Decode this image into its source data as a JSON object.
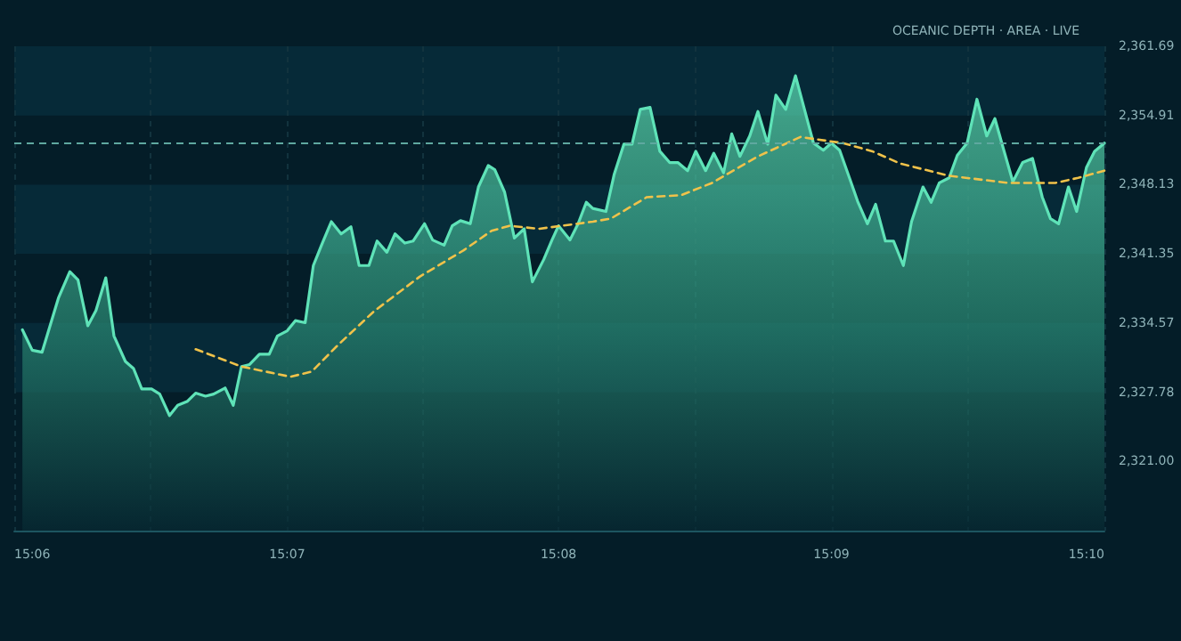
{
  "chart_data": {
    "type": "area",
    "title": "OCEANIC DEPTH · AREA · LIVE",
    "xlim": [
      15.1,
      15.1667
    ],
    "xticks": [
      {
        "value": 15.1,
        "label": "15:06"
      },
      {
        "value": 15.1083,
        "label": null
      },
      {
        "value": 15.1167,
        "label": "15:07"
      },
      {
        "value": 15.125,
        "label": null
      },
      {
        "value": 15.1333,
        "label": "15:08"
      },
      {
        "value": 15.1417,
        "label": null
      },
      {
        "value": 15.15,
        "label": "15:09"
      },
      {
        "value": 15.1583,
        "label": null
      },
      {
        "value": 15.1667,
        "label": "15:10"
      }
    ],
    "ylim": [
      2314.22,
      2361.69
    ],
    "yticks": [
      {
        "value": 2321.0,
        "label": "2,321.00"
      },
      {
        "value": 2327.78,
        "label": "2,327.78"
      },
      {
        "value": 2334.57,
        "label": "2,334.57"
      },
      {
        "value": 2341.35,
        "label": "2,341.35"
      },
      {
        "value": 2348.13,
        "label": "2,348.13"
      },
      {
        "value": 2354.91,
        "label": "2,354.91"
      },
      {
        "value": 2361.69,
        "label": "2,361.69"
      }
    ],
    "grid": "x",
    "bands": [
      {
        "axis": "y",
        "from": 2354.91,
        "to": 2361.69,
        "color": "#062a38"
      },
      {
        "axis": "y",
        "from": 2341.35,
        "to": 2348.13,
        "color": "#062a38"
      },
      {
        "axis": "y",
        "from": 2327.78,
        "to": 2334.57,
        "color": "#062a38"
      }
    ],
    "series": [
      {
        "color": "#5fe3b8",
        "x": [
          15.1005,
          15.1011,
          15.1017,
          15.1027,
          15.1034,
          15.1039,
          15.1045,
          15.105,
          15.1056,
          15.1061,
          15.1068,
          15.1073,
          15.1078,
          15.1084,
          15.1089,
          15.1095,
          15.11,
          15.1106,
          15.1111,
          15.1117,
          15.1122,
          15.1129,
          15.1134,
          15.1139,
          15.1144,
          15.115,
          15.1156,
          15.1161,
          15.1167,
          15.1172,
          15.1178,
          15.1183,
          15.1188,
          15.1194,
          15.12,
          15.1206,
          15.1211,
          15.1217,
          15.1222,
          15.1228,
          15.1233,
          15.1239,
          15.1244,
          15.1251,
          15.1256,
          15.1263,
          15.1268,
          15.1273,
          15.1279,
          15.1284,
          15.129,
          15.1294,
          15.13,
          15.1306,
          15.1312,
          15.1317,
          15.1324,
          15.1329,
          15.1333,
          15.134,
          15.1345,
          15.135,
          15.1354,
          15.1362,
          15.1367,
          15.1373,
          15.1378,
          15.1383,
          15.1389,
          15.1395,
          15.1401,
          15.1406,
          15.1412,
          15.1417,
          15.1423,
          15.1428,
          15.1434,
          15.1439,
          15.1444,
          15.145,
          15.1455,
          15.1461,
          15.1466,
          15.1472,
          15.1478,
          15.1484,
          15.1489,
          15.1495,
          15.15,
          15.1505,
          15.1511,
          15.1516,
          15.1522,
          15.1527,
          15.1533,
          15.1538,
          15.1544,
          15.1549,
          15.1556,
          15.1561,
          15.1566,
          15.1572,
          15.1577,
          15.1583,
          15.1589,
          15.1595,
          15.16,
          15.1606,
          15.1611,
          15.1617,
          15.1623,
          15.1629,
          15.1634,
          15.1639,
          15.1645,
          15.165,
          15.1656,
          15.1661,
          15.1667
        ],
        "values": [
          2333.9,
          2331.9,
          2331.7,
          2337.0,
          2339.6,
          2338.8,
          2334.3,
          2335.8,
          2339.0,
          2333.3,
          2330.8,
          2330.1,
          2328.1,
          2328.1,
          2327.6,
          2325.5,
          2326.5,
          2326.9,
          2327.7,
          2327.4,
          2327.6,
          2328.2,
          2326.5,
          2330.3,
          2330.5,
          2331.5,
          2331.5,
          2333.3,
          2333.8,
          2334.8,
          2334.6,
          2340.2,
          2342.2,
          2344.5,
          2343.3,
          2344.0,
          2340.2,
          2340.2,
          2342.6,
          2341.5,
          2343.3,
          2342.4,
          2342.6,
          2344.3,
          2342.7,
          2342.2,
          2344.1,
          2344.6,
          2344.3,
          2347.9,
          2350.0,
          2349.6,
          2347.4,
          2342.9,
          2343.8,
          2338.6,
          2340.8,
          2342.7,
          2344.1,
          2342.7,
          2344.3,
          2346.4,
          2345.8,
          2345.5,
          2349.1,
          2352.1,
          2352.1,
          2355.5,
          2355.7,
          2351.4,
          2350.3,
          2350.3,
          2349.5,
          2351.4,
          2349.5,
          2351.2,
          2349.3,
          2353.1,
          2350.9,
          2352.9,
          2355.3,
          2352.1,
          2356.9,
          2355.5,
          2358.8,
          2355.2,
          2352.2,
          2351.5,
          2352.2,
          2351.5,
          2348.8,
          2346.5,
          2344.3,
          2346.2,
          2342.6,
          2342.6,
          2340.2,
          2344.5,
          2347.9,
          2346.4,
          2348.3,
          2348.8,
          2351.0,
          2352.2,
          2356.5,
          2352.9,
          2354.6,
          2351.2,
          2348.4,
          2350.3,
          2350.7,
          2346.9,
          2344.8,
          2344.3,
          2347.9,
          2345.5,
          2349.8,
          2351.4,
          2352.2
        ]
      },
      {
        "type": "line",
        "color": "#f0c24a",
        "line_style": "dashed",
        "x": [
          15.1111,
          15.1139,
          15.1169,
          15.1182,
          15.1198,
          15.122,
          15.1248,
          15.1275,
          15.1292,
          15.1303,
          15.1321,
          15.1354,
          15.1365,
          15.1387,
          15.1408,
          15.1427,
          15.1455,
          15.1481,
          15.1507,
          15.1525,
          15.1542,
          15.1572,
          15.1608,
          15.1637,
          15.1651,
          15.1667
        ],
        "values": [
          2332.0,
          2330.3,
          2329.3,
          2329.8,
          2332.4,
          2335.7,
          2339.1,
          2341.7,
          2343.6,
          2344.1,
          2343.8,
          2344.5,
          2344.8,
          2346.9,
          2347.1,
          2348.3,
          2350.9,
          2352.8,
          2352.2,
          2351.4,
          2350.2,
          2349.0,
          2348.3,
          2348.3,
          2348.8,
          2349.5
        ]
      }
    ],
    "ref_lines": [
      {
        "axis": "y",
        "value": 2352.2,
        "color": "#5fa8a0",
        "line_style": "dashed"
      }
    ]
  }
}
